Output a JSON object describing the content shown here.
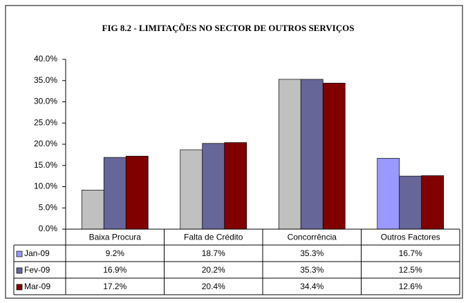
{
  "chart_data": {
    "type": "bar",
    "title": "FIG 8.2 - LIMITAÇÕES  NO SECTOR DE OUTROS SERVIÇOS",
    "categories": [
      "Baixa Procura",
      "Falta de Crédito",
      "Concorrência",
      "Outros Factores"
    ],
    "series": [
      {
        "name": "Jan-09",
        "color": "#9999ff",
        "point_colors": [
          "#c0c0c0",
          "#c0c0c0",
          "#c0c0c0",
          "#9999ff"
        ],
        "values": [
          9.2,
          18.7,
          35.3,
          16.7
        ],
        "value_labels": [
          "9.2%",
          "18.7%",
          "35.3%",
          "16.7%"
        ]
      },
      {
        "name": "Fev-09",
        "color": "#666699",
        "values": [
          16.9,
          20.2,
          35.3,
          12.5
        ],
        "value_labels": [
          "16.9%",
          "20.2%",
          "35.3%",
          "12.5%"
        ]
      },
      {
        "name": "Mar-09",
        "color": "#800000",
        "values": [
          17.2,
          20.4,
          34.4,
          12.6
        ],
        "value_labels": [
          "17.2%",
          "20.4%",
          "34.4%",
          "12.6%"
        ]
      }
    ],
    "ylim": [
      0,
      40
    ],
    "yticks": [
      {
        "value": 0,
        "label": "0.0%"
      },
      {
        "value": 5,
        "label": "5.0%"
      },
      {
        "value": 10,
        "label": "10.0%"
      },
      {
        "value": 15,
        "label": "15.0%"
      },
      {
        "value": 20,
        "label": "20.0%"
      },
      {
        "value": 25,
        "label": "25.0%"
      },
      {
        "value": 30,
        "label": "30.0%"
      },
      {
        "value": 35,
        "label": "35.0%"
      },
      {
        "value": 40,
        "label": "40.0%"
      }
    ],
    "grid": false
  }
}
